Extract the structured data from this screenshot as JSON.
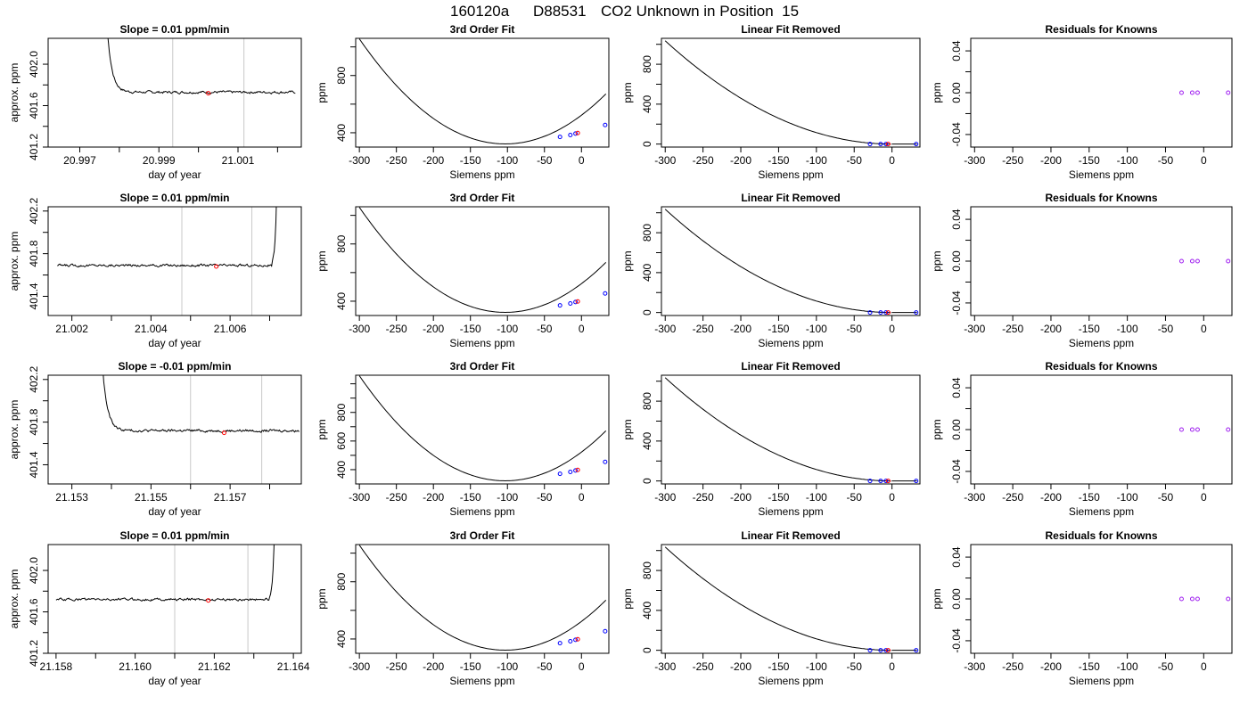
{
  "header": {
    "run_id": "160120a",
    "tank_id": "D88531",
    "description": "CO2 Unknown in Position  15"
  },
  "colors": {
    "line": "#000000",
    "window_lines": "#c8c8c8",
    "known_points": "#0000ff",
    "unknown_point": "#ff0000",
    "residual_points": "#a020f0"
  },
  "chart_data": [
    {
      "type": "line",
      "panel": "time-series",
      "row": 1,
      "title": "Slope =  0.01  ppm/min",
      "xlabel": "day of year",
      "ylabel": "approx. ppm",
      "xlim": [
        20.9962,
        21.0026
      ],
      "ylim": [
        401.2,
        402.25
      ],
      "xticks": [
        20.997,
        20.998,
        20.999,
        21.0,
        21.001,
        21.002
      ],
      "xtick_labels": [
        "20.997",
        "",
        "20.999",
        "",
        "21.001",
        ""
      ],
      "yticks": [
        401.2,
        401.4,
        401.6,
        401.8,
        402.0
      ],
      "ytick_labels": [
        "401.2",
        "",
        "401.6",
        "",
        "402.0"
      ],
      "window": [
        20.99935,
        21.00115
      ],
      "trace": {
        "start": 20.9972,
        "end": 21.00245,
        "level": 401.73,
        "noise": 0.012,
        "spike": "start",
        "spike_x": 20.99765,
        "spike_y0": 402.6,
        "tau": 0.00012
      },
      "marker": {
        "x": 21.00025,
        "y": 401.72
      }
    },
    {
      "type": "scatter",
      "panel": "3rd-order-fit",
      "row": 1,
      "title": "3rd Order Fit",
      "xlabel": "Siemens ppm",
      "ylabel": "ppm",
      "xlim": [
        -305,
        37
      ],
      "ylim": [
        300,
        1060
      ],
      "xticks": [
        -300,
        -250,
        -200,
        -150,
        -100,
        -50,
        0
      ],
      "yticks": [
        400,
        600,
        800,
        1000
      ],
      "ytick_labels": [
        "400",
        "",
        "800",
        ""
      ],
      "curve": {
        "type": "quadratic",
        "vertex_x": -103,
        "vertex_y": 322,
        "a": 0.0189,
        "x": [
          -300,
          33
        ]
      },
      "knowns": [
        {
          "x": -29,
          "y": 371
        },
        {
          "x": -15,
          "y": 384
        },
        {
          "x": -8,
          "y": 394
        },
        {
          "x": 32,
          "y": 454
        }
      ],
      "unknown": {
        "x": -5,
        "y": 398
      }
    },
    {
      "type": "scatter",
      "panel": "linear-fit-removed",
      "row": 1,
      "title": "Linear Fit Removed",
      "xlabel": "Siemens ppm",
      "ylabel": "ppm",
      "xlim": [
        -305,
        37
      ],
      "ylim": [
        -30,
        1060
      ],
      "xticks": [
        -300,
        -250,
        -200,
        -150,
        -100,
        -50,
        0
      ],
      "yticks": [
        0,
        200,
        400,
        600,
        800,
        1000
      ],
      "ytick_labels": [
        "0",
        "",
        "400",
        "",
        "800",
        ""
      ],
      "curve": {
        "type": "quadratic",
        "vertex_x": 0,
        "vertex_y": 0,
        "a": 0.0115,
        "x": [
          -300,
          0
        ],
        "flat_to": 33
      },
      "knowns": [
        {
          "x": -29,
          "y": 0
        },
        {
          "x": -15,
          "y": 0
        },
        {
          "x": -8,
          "y": 0
        },
        {
          "x": 32,
          "y": 0
        }
      ],
      "unknown": {
        "x": -5,
        "y": 0
      }
    },
    {
      "type": "scatter",
      "panel": "residuals",
      "row": 1,
      "title": "Residuals for Knowns",
      "xlabel": "Siemens ppm",
      "ylabel": "ppm",
      "xlim": [
        -305,
        37
      ],
      "ylim": [
        -0.052,
        0.052
      ],
      "xticks": [
        -300,
        -250,
        -200,
        -150,
        -100,
        -50,
        0
      ],
      "yticks": [
        -0.04,
        -0.02,
        0.0,
        0.02,
        0.04
      ],
      "ytick_labels": [
        "-0.04",
        "",
        "0.00",
        "",
        "0.04"
      ],
      "residuals": [
        {
          "x": -29,
          "y": 0
        },
        {
          "x": -15,
          "y": 0
        },
        {
          "x": -8,
          "y": 0
        },
        {
          "x": 32,
          "y": 0
        }
      ]
    },
    {
      "type": "line",
      "panel": "time-series",
      "row": 2,
      "title": "Slope =  0.01  ppm/min",
      "xlabel": "day of year",
      "ylabel": "approx. ppm",
      "xlim": [
        21.0014,
        21.0078
      ],
      "ylim": [
        401.22,
        402.24
      ],
      "xticks": [
        21.002,
        21.003,
        21.004,
        21.005,
        21.006,
        21.007
      ],
      "xtick_labels": [
        "21.002",
        "",
        "21.004",
        "",
        "21.006",
        ""
      ],
      "yticks": [
        401.4,
        401.6,
        401.8,
        402.0,
        402.2
      ],
      "ytick_labels": [
        "401.4",
        "",
        "401.8",
        "",
        "402.2"
      ],
      "window": [
        21.00478,
        21.00655
      ],
      "trace": {
        "start": 21.00163,
        "end": 21.0072,
        "level": 401.69,
        "noise": 0.012,
        "spike": "end",
        "spike_x": 21.00718,
        "spike_y0": 402.4,
        "tau": 4e-05
      },
      "marker": {
        "x": 21.00565,
        "y": 401.68
      }
    },
    {
      "type": "scatter",
      "panel": "3rd-order-fit",
      "row": 2,
      "title": "3rd Order Fit",
      "xlabel": "Siemens ppm",
      "ylabel": "ppm",
      "xlim": [
        -305,
        37
      ],
      "ylim": [
        300,
        1060
      ],
      "xticks": [
        -300,
        -250,
        -200,
        -150,
        -100,
        -50,
        0
      ],
      "yticks": [
        400,
        600,
        800,
        1000
      ],
      "ytick_labels": [
        "400",
        "",
        "800",
        ""
      ],
      "curve": {
        "type": "quadratic",
        "vertex_x": -103,
        "vertex_y": 322,
        "a": 0.0189,
        "x": [
          -300,
          33
        ]
      },
      "knowns": [
        {
          "x": -29,
          "y": 371
        },
        {
          "x": -15,
          "y": 384
        },
        {
          "x": -8,
          "y": 394
        },
        {
          "x": 32,
          "y": 454
        }
      ],
      "unknown": {
        "x": -5,
        "y": 398
      }
    },
    {
      "type": "scatter",
      "panel": "linear-fit-removed",
      "row": 2,
      "title": "Linear Fit Removed",
      "xlabel": "Siemens ppm",
      "ylabel": "ppm",
      "xlim": [
        -305,
        37
      ],
      "ylim": [
        -30,
        1060
      ],
      "xticks": [
        -300,
        -250,
        -200,
        -150,
        -100,
        -50,
        0
      ],
      "yticks": [
        0,
        200,
        400,
        600,
        800,
        1000
      ],
      "ytick_labels": [
        "0",
        "",
        "400",
        "",
        "800",
        ""
      ],
      "curve": {
        "type": "quadratic",
        "vertex_x": 0,
        "vertex_y": 0,
        "a": 0.0115,
        "x": [
          -300,
          0
        ],
        "flat_to": 33
      },
      "knowns": [
        {
          "x": -29,
          "y": 0
        },
        {
          "x": -15,
          "y": 0
        },
        {
          "x": -8,
          "y": 0
        },
        {
          "x": 32,
          "y": 0
        }
      ],
      "unknown": {
        "x": -5,
        "y": 0
      }
    },
    {
      "type": "scatter",
      "panel": "residuals",
      "row": 2,
      "title": "Residuals for Knowns",
      "xlabel": "Siemens ppm",
      "ylabel": "ppm",
      "xlim": [
        -305,
        37
      ],
      "ylim": [
        -0.052,
        0.052
      ],
      "xticks": [
        -300,
        -250,
        -200,
        -150,
        -100,
        -50,
        0
      ],
      "yticks": [
        -0.04,
        -0.02,
        0.0,
        0.02,
        0.04
      ],
      "ytick_labels": [
        "-0.04",
        "",
        "0.00",
        "",
        "0.04"
      ],
      "residuals": [
        {
          "x": -29,
          "y": 0
        },
        {
          "x": -15,
          "y": 0
        },
        {
          "x": -8,
          "y": 0
        },
        {
          "x": 32,
          "y": 0
        }
      ]
    },
    {
      "type": "line",
      "panel": "time-series",
      "row": 3,
      "title": "Slope =  -0.01  ppm/min",
      "xlabel": "day of year",
      "ylabel": "approx. ppm",
      "xlim": [
        21.1524,
        21.1588
      ],
      "ylim": [
        401.22,
        402.24
      ],
      "xticks": [
        21.153,
        21.154,
        21.155,
        21.156,
        21.157,
        21.158
      ],
      "xtick_labels": [
        "21.153",
        "",
        "21.155",
        "",
        "21.157",
        ""
      ],
      "yticks": [
        401.4,
        401.6,
        401.8,
        402.0,
        402.2
      ],
      "ytick_labels": [
        "401.4",
        "",
        "401.8",
        "",
        "402.2"
      ],
      "window": [
        21.156,
        21.1578
      ],
      "trace": {
        "start": 21.15373,
        "end": 21.15875,
        "level": 401.72,
        "noise": 0.012,
        "spike": "start",
        "spike_x": 21.15373,
        "spike_y0": 402.6,
        "tau": 0.00012
      },
      "marker": {
        "x": 21.15685,
        "y": 401.7
      }
    },
    {
      "type": "scatter",
      "panel": "3rd-order-fit",
      "row": 3,
      "title": "3rd Order Fit",
      "xlabel": "Siemens ppm",
      "ylabel": "ppm",
      "xlim": [
        -305,
        37
      ],
      "ylim": [
        300,
        1060
      ],
      "xticks": [
        -300,
        -250,
        -200,
        -150,
        -100,
        -50,
        0
      ],
      "yticks": [
        400,
        500,
        600,
        700,
        800,
        900,
        1000
      ],
      "ytick_labels": [
        "400",
        "",
        "600",
        "",
        "800",
        "",
        ""
      ],
      "curve": {
        "type": "quadratic",
        "vertex_x": -103,
        "vertex_y": 322,
        "a": 0.0189,
        "x": [
          -300,
          33
        ]
      },
      "knowns": [
        {
          "x": -29,
          "y": 371
        },
        {
          "x": -15,
          "y": 384
        },
        {
          "x": -8,
          "y": 394
        },
        {
          "x": 32,
          "y": 454
        }
      ],
      "unknown": {
        "x": -5,
        "y": 398
      }
    },
    {
      "type": "scatter",
      "panel": "linear-fit-removed",
      "row": 3,
      "title": "Linear Fit Removed",
      "xlabel": "Siemens ppm",
      "ylabel": "ppm",
      "xlim": [
        -305,
        37
      ],
      "ylim": [
        -30,
        1060
      ],
      "xticks": [
        -300,
        -250,
        -200,
        -150,
        -100,
        -50,
        0
      ],
      "yticks": [
        0,
        200,
        400,
        600,
        800,
        1000
      ],
      "ytick_labels": [
        "0",
        "",
        "400",
        "",
        "800",
        ""
      ],
      "curve": {
        "type": "quadratic",
        "vertex_x": 0,
        "vertex_y": 0,
        "a": 0.0115,
        "x": [
          -300,
          0
        ],
        "flat_to": 33
      },
      "knowns": [
        {
          "x": -29,
          "y": 0
        },
        {
          "x": -15,
          "y": 0
        },
        {
          "x": -8,
          "y": 0
        },
        {
          "x": 32,
          "y": 0
        }
      ],
      "unknown": {
        "x": -5,
        "y": 0
      }
    },
    {
      "type": "scatter",
      "panel": "residuals",
      "row": 3,
      "title": "Residuals for Knowns",
      "xlabel": "Siemens ppm",
      "ylabel": "ppm",
      "xlim": [
        -305,
        37
      ],
      "ylim": [
        -0.052,
        0.052
      ],
      "xticks": [
        -300,
        -250,
        -200,
        -150,
        -100,
        -50,
        0
      ],
      "yticks": [
        -0.04,
        -0.02,
        0.0,
        0.02,
        0.04
      ],
      "ytick_labels": [
        "-0.04",
        "",
        "0.00",
        "",
        "0.04"
      ],
      "residuals": [
        {
          "x": -29,
          "y": 0
        },
        {
          "x": -15,
          "y": 0
        },
        {
          "x": -8,
          "y": 0
        },
        {
          "x": 32,
          "y": 0
        }
      ]
    },
    {
      "type": "line",
      "panel": "time-series",
      "row": 4,
      "title": "Slope =  0.01  ppm/min",
      "xlabel": "day of year",
      "ylabel": "approx. ppm",
      "xlim": [
        21.1578,
        21.1642
      ],
      "ylim": [
        401.2,
        402.25
      ],
      "xticks": [
        21.158,
        21.159,
        21.16,
        21.161,
        21.162,
        21.163,
        21.164
      ],
      "xtick_labels": [
        "21.158",
        "",
        "21.160",
        "",
        "21.162",
        "",
        "21.164"
      ],
      "yticks": [
        401.2,
        401.4,
        401.6,
        401.8,
        402.0
      ],
      "ytick_labels": [
        "401.2",
        "",
        "401.6",
        "",
        "402.0"
      ],
      "window": [
        21.161,
        21.16285
      ],
      "trace": {
        "start": 21.158,
        "end": 21.16355,
        "level": 401.72,
        "noise": 0.012,
        "spike": "end",
        "spike_x": 21.16352,
        "spike_y0": 402.4,
        "tau": 4e-05
      },
      "marker": {
        "x": 21.16185,
        "y": 401.71
      }
    },
    {
      "type": "scatter",
      "panel": "3rd-order-fit",
      "row": 4,
      "title": "3rd Order Fit",
      "xlabel": "Siemens ppm",
      "ylabel": "ppm",
      "xlim": [
        -305,
        37
      ],
      "ylim": [
        300,
        1060
      ],
      "xticks": [
        -300,
        -250,
        -200,
        -150,
        -100,
        -50,
        0
      ],
      "yticks": [
        400,
        600,
        800,
        1000
      ],
      "ytick_labels": [
        "400",
        "",
        "800",
        ""
      ],
      "curve": {
        "type": "quadratic",
        "vertex_x": -103,
        "vertex_y": 322,
        "a": 0.0189,
        "x": [
          -300,
          33
        ]
      },
      "knowns": [
        {
          "x": -29,
          "y": 371
        },
        {
          "x": -15,
          "y": 384
        },
        {
          "x": -8,
          "y": 394
        },
        {
          "x": 32,
          "y": 454
        }
      ],
      "unknown": {
        "x": -5,
        "y": 398
      }
    },
    {
      "type": "scatter",
      "panel": "linear-fit-removed",
      "row": 4,
      "title": "Linear Fit Removed",
      "xlabel": "Siemens ppm",
      "ylabel": "ppm",
      "xlim": [
        -305,
        37
      ],
      "ylim": [
        -30,
        1060
      ],
      "xticks": [
        -300,
        -250,
        -200,
        -150,
        -100,
        -50,
        0
      ],
      "yticks": [
        0,
        200,
        400,
        600,
        800,
        1000
      ],
      "ytick_labels": [
        "0",
        "",
        "400",
        "",
        "800",
        ""
      ],
      "curve": {
        "type": "quadratic",
        "vertex_x": 0,
        "vertex_y": 0,
        "a": 0.0115,
        "x": [
          -300,
          0
        ],
        "flat_to": 33
      },
      "knowns": [
        {
          "x": -29,
          "y": 0
        },
        {
          "x": -15,
          "y": 0
        },
        {
          "x": -8,
          "y": 0
        },
        {
          "x": 32,
          "y": 0
        }
      ],
      "unknown": {
        "x": -5,
        "y": 0
      }
    },
    {
      "type": "scatter",
      "panel": "residuals",
      "row": 4,
      "title": "Residuals for Knowns",
      "xlabel": "Siemens ppm",
      "ylabel": "ppm",
      "xlim": [
        -305,
        37
      ],
      "ylim": [
        -0.052,
        0.052
      ],
      "xticks": [
        -300,
        -250,
        -200,
        -150,
        -100,
        -50,
        0
      ],
      "yticks": [
        -0.04,
        -0.02,
        0.0,
        0.02,
        0.04
      ],
      "ytick_labels": [
        "-0.04",
        "",
        "0.00",
        "",
        "0.04"
      ],
      "residuals": [
        {
          "x": -29,
          "y": 0
        },
        {
          "x": -15,
          "y": 0
        },
        {
          "x": -8,
          "y": 0
        },
        {
          "x": 32,
          "y": 0
        }
      ]
    }
  ]
}
